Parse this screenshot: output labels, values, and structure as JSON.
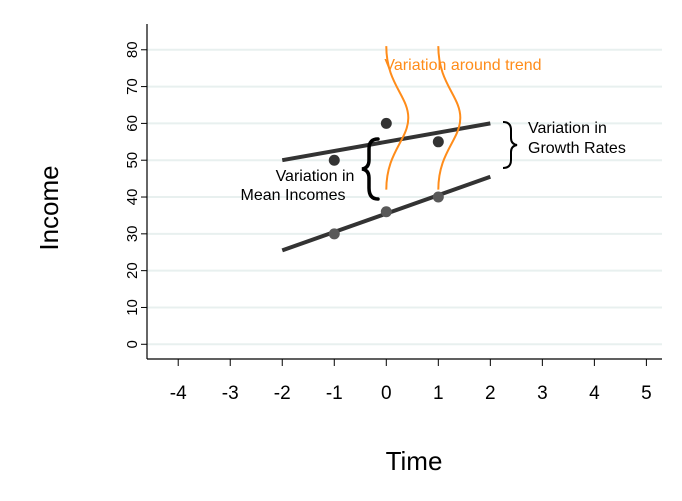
{
  "chart_data": {
    "type": "line",
    "xlabel": "Time",
    "ylabel": "Income",
    "xlim": [
      -4.6,
      5.3
    ],
    "ylim": [
      -4,
      87
    ],
    "x_ticks": [
      -4,
      -3,
      -2,
      -1,
      0,
      1,
      2,
      3,
      4,
      5
    ],
    "y_ticks": [
      0,
      10,
      20,
      30,
      40,
      50,
      60,
      70,
      80
    ],
    "grid": {
      "horizontal": true,
      "vertical": false
    },
    "colors": {
      "line": "#333333",
      "grid": "#e8f0ef",
      "accent": "#ff8c1a",
      "point_upper": "#333333",
      "point_lower": "#595959",
      "axes": "#000000"
    },
    "series": [
      {
        "x": [
          -2,
          2
        ],
        "y": [
          50,
          60
        ],
        "points": [
          [
            -1,
            50
          ],
          [
            0,
            60
          ],
          [
            1,
            55
          ]
        ]
      },
      {
        "x": [
          -2,
          2
        ],
        "y": [
          25.5,
          45.5
        ],
        "points": [
          [
            -1,
            30
          ],
          [
            0,
            36
          ],
          [
            1,
            40
          ]
        ]
      }
    ],
    "annotations": {
      "around_trend": "Variation around trend",
      "mean_incomes_line1": "Variation in",
      "mean_incomes_line2": "Mean Incomes",
      "growth_rates_line1": "Variation in",
      "growth_rates_line2": "Growth Rates"
    }
  }
}
